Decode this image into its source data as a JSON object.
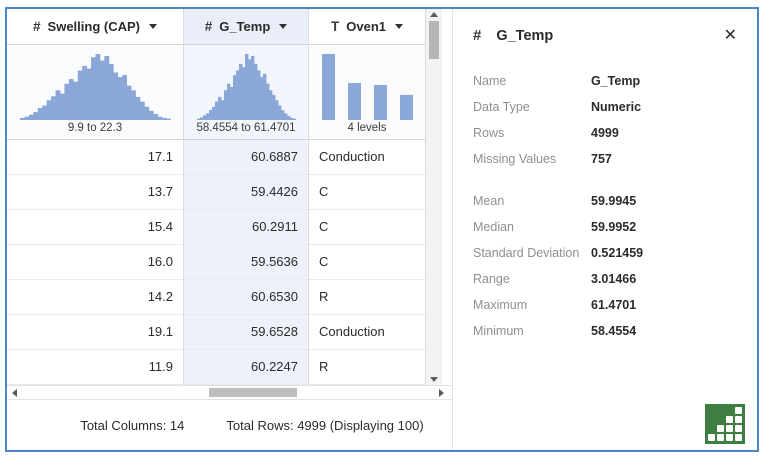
{
  "colors": {
    "window_border": "#4a86c8",
    "histogram_fill": "#8ba7d7",
    "selected_column_bg": "#eef1f9",
    "selected_header_bg": "#e9eef8",
    "stats_icon_green": "#3e7e41"
  },
  "table": {
    "columns": [
      {
        "type_icon": "#",
        "type": "numeric",
        "name": "Swelling (CAP)",
        "summary_label": "9.9 to 22.3",
        "selected": false,
        "align": "right"
      },
      {
        "type_icon": "#",
        "type": "numeric",
        "name": "G_Temp",
        "summary_label": "58.4554 to 61.4701",
        "selected": true,
        "align": "right"
      },
      {
        "type_icon": "T",
        "type": "text",
        "name": "Oven1",
        "summary_label": "4 levels",
        "selected": false,
        "align": "left"
      }
    ],
    "rows": [
      [
        "17.1",
        "60.6887",
        "Conduction"
      ],
      [
        "13.7",
        "59.4426",
        "C"
      ],
      [
        "15.4",
        "60.2911",
        "C"
      ],
      [
        "16.0",
        "59.5636",
        "C"
      ],
      [
        "14.2",
        "60.6530",
        "R"
      ],
      [
        "19.1",
        "59.6528",
        "Conduction"
      ],
      [
        "11.9",
        "60.2247",
        "R"
      ]
    ],
    "footer": {
      "total_columns": "Total Columns: 14",
      "total_rows": "Total Rows: 4999 (Displaying 100)"
    }
  },
  "panel": {
    "type_icon": "#",
    "title": "G_Temp",
    "close_glyph": "✕",
    "fields": [
      {
        "label": "Name",
        "value": "G_Temp"
      },
      {
        "label": "Data Type",
        "value": "Numeric"
      },
      {
        "label": "Rows",
        "value": "4999"
      },
      {
        "label": "Missing Values",
        "value": "757"
      },
      {
        "label": "Mean",
        "value": "59.9945",
        "gap_before": true
      },
      {
        "label": "Median",
        "value": "59.9952"
      },
      {
        "label": "Standard Deviation",
        "value": "0.521459"
      },
      {
        "label": "Range",
        "value": "3.01466"
      },
      {
        "label": "Maximum",
        "value": "61.4701"
      },
      {
        "label": "Minimum",
        "value": "58.4554"
      }
    ]
  },
  "chart_data": [
    {
      "type": "histogram",
      "title": "Swelling (CAP)",
      "x_range": [
        9.9,
        22.3
      ],
      "bars": [
        0.03,
        0.05,
        0.08,
        0.12,
        0.18,
        0.22,
        0.3,
        0.36,
        0.45,
        0.4,
        0.55,
        0.62,
        0.58,
        0.75,
        0.82,
        0.78,
        0.95,
        1.0,
        0.9,
        0.97,
        0.85,
        0.72,
        0.65,
        0.68,
        0.52,
        0.45,
        0.35,
        0.28,
        0.2,
        0.14,
        0.09,
        0.05,
        0.03,
        0.02
      ]
    },
    {
      "type": "histogram",
      "title": "G_Temp",
      "x_range": [
        58.4554,
        61.4701
      ],
      "bars": [
        0.02,
        0.04,
        0.07,
        0.1,
        0.15,
        0.2,
        0.28,
        0.35,
        0.3,
        0.45,
        0.55,
        0.5,
        0.68,
        0.75,
        0.85,
        0.8,
        1.0,
        0.92,
        0.97,
        0.85,
        0.75,
        0.65,
        0.7,
        0.55,
        0.45,
        0.38,
        0.3,
        0.22,
        0.15,
        0.1,
        0.06,
        0.03,
        0.02
      ]
    },
    {
      "type": "bar",
      "title": "Oven1",
      "label": "4 levels",
      "categories_count": 4,
      "bars": [
        1.0,
        0.56,
        0.53,
        0.38
      ]
    }
  ]
}
